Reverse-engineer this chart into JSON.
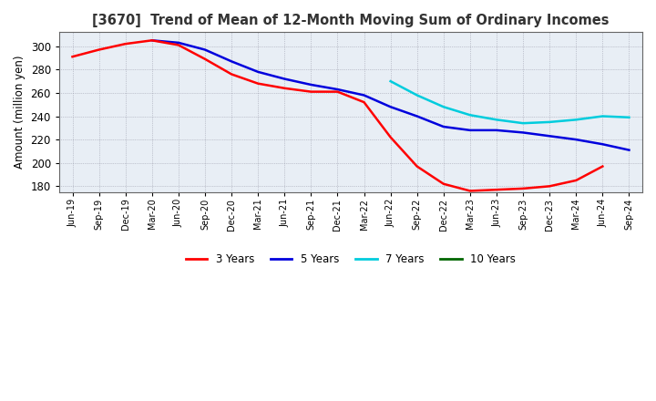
{
  "title": "[3670]  Trend of Mean of 12-Month Moving Sum of Ordinary Incomes",
  "ylabel": "Amount (million yen)",
  "ylim": [
    175,
    312
  ],
  "yticks": [
    180,
    200,
    220,
    240,
    260,
    280,
    300
  ],
  "line_colors": {
    "3y": "#ff0000",
    "5y": "#0000dd",
    "7y": "#00ccdd",
    "10y": "#006600"
  },
  "legend_labels": [
    "3 Years",
    "5 Years",
    "7 Years",
    "10 Years"
  ],
  "background_color": "#e8eef5",
  "x_labels": [
    "Jun-19",
    "Sep-19",
    "Dec-19",
    "Mar-20",
    "Jun-20",
    "Sep-20",
    "Dec-20",
    "Mar-21",
    "Jun-21",
    "Sep-21",
    "Dec-21",
    "Mar-22",
    "Jun-22",
    "Sep-22",
    "Dec-22",
    "Mar-23",
    "Jun-23",
    "Sep-23",
    "Dec-23",
    "Mar-24",
    "Jun-24",
    "Sep-24"
  ],
  "data_3y": [
    291,
    297,
    302,
    305,
    301,
    289,
    276,
    268,
    264,
    261,
    261,
    252,
    222,
    197,
    182,
    176,
    177,
    178,
    180,
    185,
    197,
    null
  ],
  "data_5y": [
    null,
    null,
    null,
    305,
    303,
    297,
    287,
    278,
    272,
    267,
    263,
    258,
    248,
    240,
    231,
    228,
    228,
    226,
    223,
    220,
    216,
    211
  ],
  "data_7y": [
    null,
    null,
    null,
    null,
    null,
    null,
    null,
    null,
    null,
    null,
    null,
    null,
    270,
    258,
    248,
    241,
    237,
    234,
    235,
    237,
    240,
    239
  ],
  "data_10y": [
    null,
    null,
    null,
    null,
    null,
    null,
    null,
    null,
    null,
    null,
    null,
    null,
    null,
    null,
    null,
    null,
    null,
    null,
    null,
    null,
    null,
    null
  ]
}
